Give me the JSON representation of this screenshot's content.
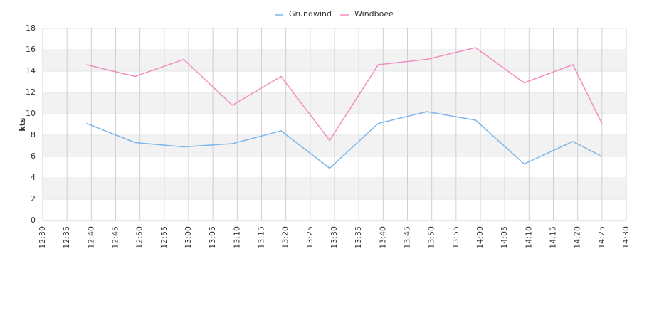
{
  "chart_data": {
    "type": "line",
    "y_label": "kts",
    "x": [
      "12:39",
      "12:49",
      "12:59",
      "13:09",
      "13:19",
      "13:29",
      "13:39",
      "13:49",
      "13:59",
      "14:09",
      "14:19",
      "14:25"
    ],
    "series": [
      {
        "name": "Grundwind",
        "color": "#7cb5ec",
        "values": [
          9.1,
          7.3,
          6.9,
          7.2,
          8.4,
          4.9,
          9.1,
          10.2,
          9.4,
          5.3,
          7.4,
          6.0
        ]
      },
      {
        "name": "Windboee",
        "color": "#f28cc0",
        "values": [
          14.6,
          13.5,
          15.1,
          10.8,
          13.5,
          7.5,
          14.6,
          15.1,
          16.2,
          12.9,
          14.6,
          9.1
        ]
      }
    ],
    "xlim": [
      "12:30",
      "14:30"
    ],
    "xticks": [
      "12:30",
      "12:35",
      "12:40",
      "12:45",
      "12:50",
      "12:55",
      "13:00",
      "13:05",
      "13:10",
      "13:15",
      "13:20",
      "13:25",
      "13:30",
      "13:35",
      "13:40",
      "13:45",
      "13:50",
      "13:55",
      "14:00",
      "14:05",
      "14:10",
      "14:15",
      "14:20",
      "14:25",
      "14:30"
    ],
    "ylim": [
      0,
      18
    ],
    "yticks": [
      0,
      2,
      4,
      6,
      8,
      10,
      12,
      14,
      16,
      18
    ],
    "grid": true,
    "legend": "top"
  }
}
